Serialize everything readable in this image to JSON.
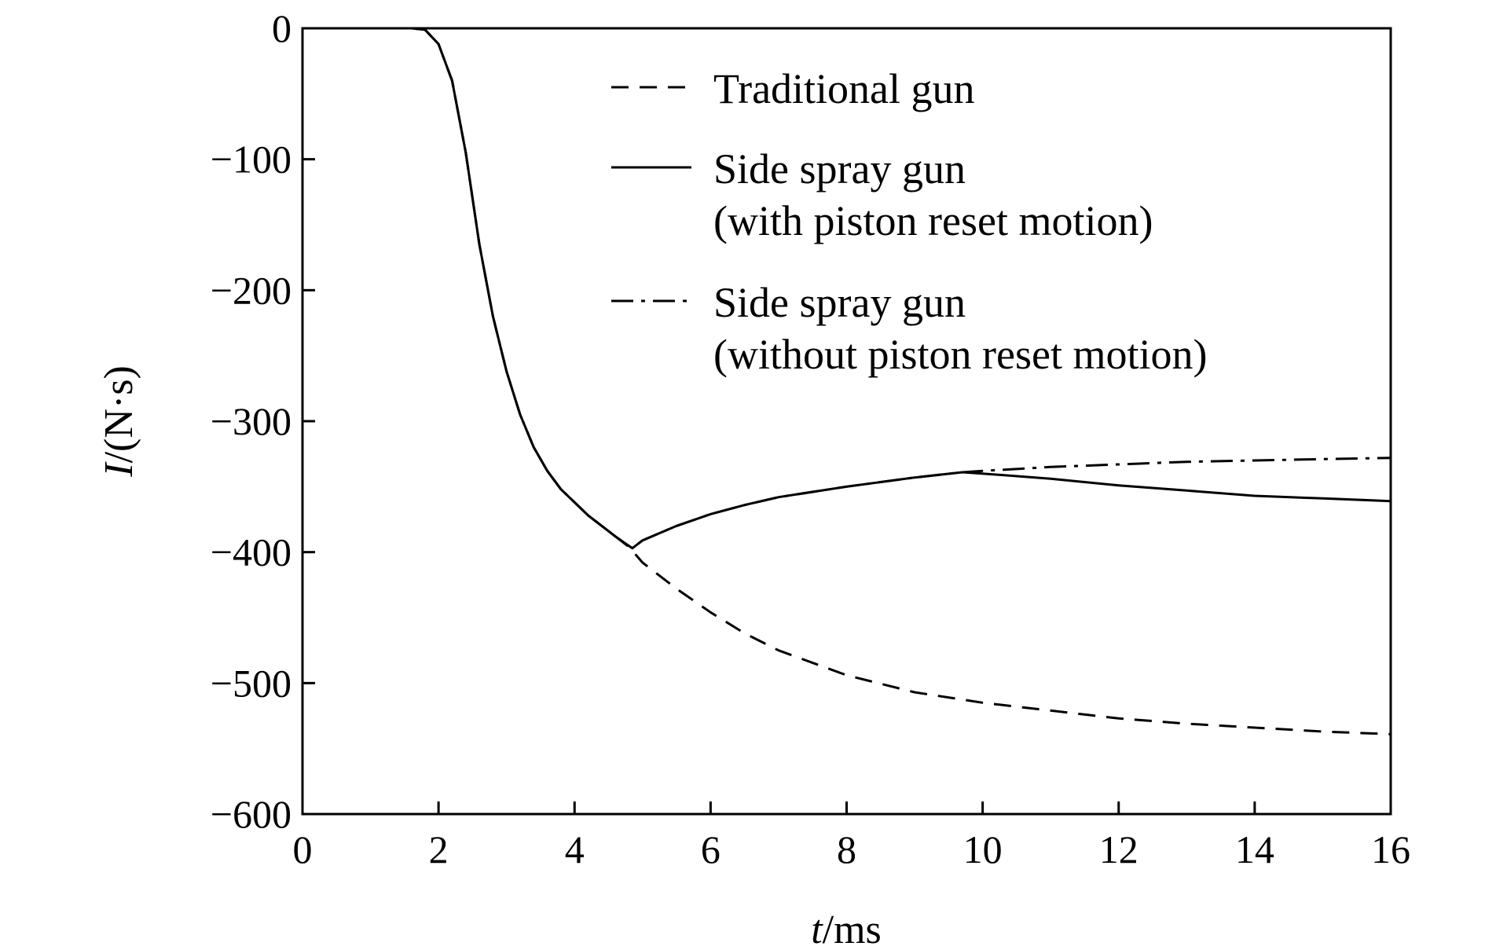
{
  "chart_data": {
    "type": "line",
    "title": "",
    "xlabel": {
      "var": "t",
      "unit": "/ms"
    },
    "ylabel": {
      "var": "I",
      "unit": "/(N·s)"
    },
    "xlim": [
      0,
      16
    ],
    "ylim": [
      -600,
      0
    ],
    "xticks": [
      "0",
      "2",
      "4",
      "6",
      "8",
      "10",
      "12",
      "14",
      "16"
    ],
    "yticks": [
      "0",
      "−100",
      "−200",
      "−300",
      "−400",
      "−500",
      "−600"
    ],
    "grid": false,
    "legend_position": "top-right",
    "series": [
      {
        "name": "Traditional gun",
        "style": "dashed",
        "color": "#000000",
        "x": [
          0,
          1.6,
          1.8,
          2.0,
          2.2,
          2.4,
          2.6,
          2.8,
          3.0,
          3.2,
          3.4,
          3.6,
          3.8,
          4.0,
          4.2,
          4.4,
          4.6,
          4.8,
          5.0,
          5.5,
          6.0,
          6.5,
          7.0,
          8.0,
          9.0,
          10.0,
          11.0,
          12.0,
          13.0,
          14.0,
          15.0,
          16.0
        ],
        "y": [
          0,
          0,
          -1,
          -12,
          -40,
          -95,
          -165,
          -220,
          -262,
          -295,
          -320,
          -338,
          -352,
          -362,
          -372,
          -380,
          -388,
          -396,
          -408,
          -428,
          -446,
          -462,
          -475,
          -494,
          -507,
          -515,
          -521,
          -527,
          -531,
          -534,
          -537,
          -539
        ]
      },
      {
        "name": "Side spray gun\n(with piston reset motion)",
        "style": "solid",
        "color": "#000000",
        "x": [
          0,
          1.6,
          1.8,
          2.0,
          2.2,
          2.4,
          2.6,
          2.8,
          3.0,
          3.2,
          3.4,
          3.6,
          3.8,
          4.0,
          4.2,
          4.4,
          4.6,
          4.85,
          5.0,
          5.5,
          6.0,
          6.5,
          7.0,
          8.0,
          9.0,
          9.7,
          10.0,
          11.0,
          12.0,
          13.0,
          14.0,
          15.0,
          16.0
        ],
        "y": [
          0,
          0,
          -1,
          -12,
          -40,
          -95,
          -165,
          -220,
          -262,
          -295,
          -320,
          -338,
          -352,
          -362,
          -372,
          -380,
          -388,
          -397,
          -391,
          -380,
          -371,
          -364,
          -358,
          -350,
          -343,
          -339,
          -340,
          -344,
          -349,
          -353,
          -357,
          -359,
          -361
        ]
      },
      {
        "name": "Side spray gun\n(without piston reset motion)",
        "style": "dashdot",
        "color": "#000000",
        "x": [
          0,
          1.6,
          1.8,
          2.0,
          2.2,
          2.4,
          2.6,
          2.8,
          3.0,
          3.2,
          3.4,
          3.6,
          3.8,
          4.0,
          4.2,
          4.4,
          4.6,
          4.85,
          5.0,
          5.5,
          6.0,
          6.5,
          7.0,
          8.0,
          9.0,
          9.7,
          10.0,
          11.0,
          12.0,
          13.0,
          14.0,
          15.0,
          16.0
        ],
        "y": [
          0,
          0,
          -1,
          -12,
          -40,
          -95,
          -165,
          -220,
          -262,
          -295,
          -320,
          -338,
          -352,
          -362,
          -372,
          -380,
          -388,
          -397,
          -391,
          -380,
          -371,
          -364,
          -358,
          -350,
          -343,
          -339,
          -338,
          -335,
          -333,
          -331,
          -330,
          -329,
          -328
        ]
      }
    ]
  }
}
